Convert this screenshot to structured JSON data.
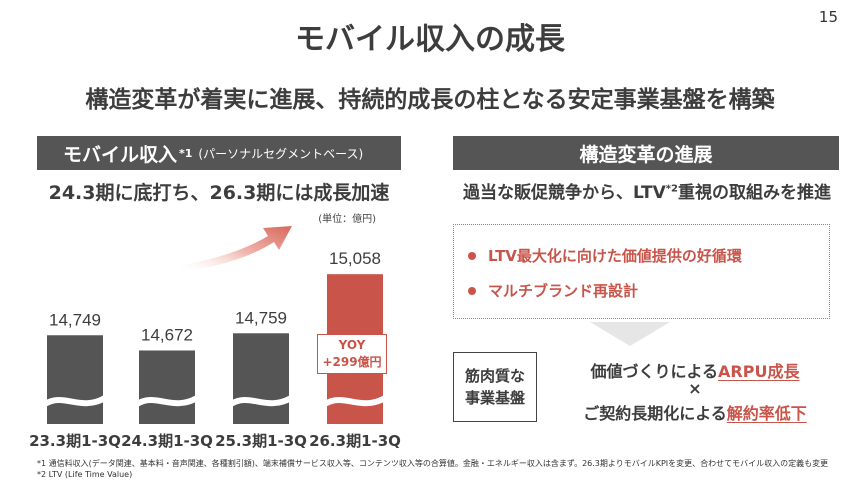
{
  "page_number": "15",
  "title": "モバイル収入の成長",
  "subtitle": "構造変革が着実に進展、持続的成長の柱となる安定事業基盤を構築",
  "left_panel": {
    "header": "モバイル収入",
    "header_sup": "*1",
    "header_sub": "(パーソナルセグメントベース)",
    "tagline": "24.3期に底打ち、26.3期には成長加速",
    "unit": "(単位：億円)",
    "yoy_label": "YOY",
    "yoy_value": "+299億円"
  },
  "chart_data": {
    "type": "bar",
    "categories": [
      "23.3期1-3Q",
      "24.3期1-3Q",
      "25.3期1-3Q",
      "26.3期1-3Q"
    ],
    "values": [
      14749,
      14672,
      14759,
      15058
    ],
    "value_labels": [
      "14,749",
      "14,672",
      "14,759",
      "15,058"
    ],
    "unit": "億円",
    "ylim": [
      14300,
      15150
    ],
    "axis_break": true,
    "colors": [
      "#555555",
      "#555555",
      "#555555",
      "#c9544a"
    ],
    "annotation": "YOY +299億円"
  },
  "right_panel": {
    "header": "構造変革の進展",
    "tagline_pre": "過当な販促競争から、LTV",
    "tagline_sup": "*2",
    "tagline_post": "重視の取組みを推進",
    "items": [
      "LTV最大化に向けた価値提供の好循環",
      "マルチブランド再設計"
    ],
    "base_line1": "筋肉質な",
    "base_line2": "事業基盤",
    "goal1_pre": "価値づくりによる",
    "goal1_accent": "ARPU成長",
    "times": "×",
    "goal2_pre": "ご契約長期化による",
    "goal2_accent": "解約率低下"
  },
  "footnotes": [
    "*1 通信料収入(データ関連、基本料・音声関連、各種割引額)、端末補償サービス収入等、コンテンツ収入等の合算値。金融・エネルギー収入は含まず。26.3期よりモバイルKPIを変更、合わせてモバイル収入の定義も変更",
    "*2 LTV (Life Time Value)"
  ],
  "colors": {
    "dark_bar": "#555555",
    "accent": "#c9544a",
    "header_bg": "#555555"
  }
}
